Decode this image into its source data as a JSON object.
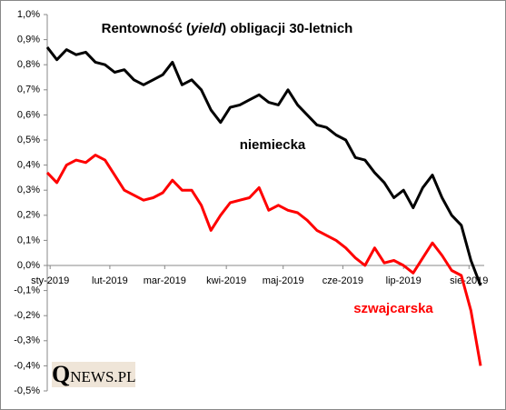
{
  "chart_data": {
    "type": "line",
    "title": [
      "Rentowność (",
      "yield",
      ") obligacji 30-letnich"
    ],
    "xlim": [
      0,
      45
    ],
    "xticks": [
      {
        "value": 0.3,
        "label": "sty-2019"
      },
      {
        "value": 6.5,
        "label": "lut-2019"
      },
      {
        "value": 12.2,
        "label": "mar-2019"
      },
      {
        "value": 18.6,
        "label": "kwi-2019"
      },
      {
        "value": 24.5,
        "label": "maj-2019"
      },
      {
        "value": 30.7,
        "label": "cze-2019"
      },
      {
        "value": 37,
        "label": "lip-2019"
      },
      {
        "value": 43.8,
        "label": "sie-2019"
      }
    ],
    "ylim": [
      -0.5,
      1.0
    ],
    "yticks": [
      {
        "value": 1.0,
        "label": "1,0%"
      },
      {
        "value": 0.9,
        "label": "0,9%"
      },
      {
        "value": 0.8,
        "label": "0,8%"
      },
      {
        "value": 0.7,
        "label": "0,7%"
      },
      {
        "value": 0.6,
        "label": "0,6%"
      },
      {
        "value": 0.5,
        "label": "0,5%"
      },
      {
        "value": 0.4,
        "label": "0,4%"
      },
      {
        "value": 0.3,
        "label": "0,3%"
      },
      {
        "value": 0.2,
        "label": "0,2%"
      },
      {
        "value": 0.1,
        "label": "0,1%"
      },
      {
        "value": 0.0,
        "label": "0,0%"
      },
      {
        "value": -0.1,
        "label": "-0,1%"
      },
      {
        "value": -0.2,
        "label": "-0,2%"
      },
      {
        "value": -0.3,
        "label": "-0,3%"
      },
      {
        "value": -0.4,
        "label": "-0,4%"
      },
      {
        "value": -0.5,
        "label": "-0,5%"
      }
    ],
    "grid": false,
    "series": [
      {
        "name": "niemiecka",
        "color": "#000000",
        "values": [
          0.87,
          0.82,
          0.86,
          0.84,
          0.85,
          0.81,
          0.8,
          0.77,
          0.78,
          0.74,
          0.72,
          0.74,
          0.76,
          0.81,
          0.72,
          0.74,
          0.7,
          0.62,
          0.57,
          0.63,
          0.64,
          0.66,
          0.68,
          0.65,
          0.64,
          0.7,
          0.64,
          0.6,
          0.56,
          0.55,
          0.52,
          0.5,
          0.43,
          0.42,
          0.37,
          0.33,
          0.27,
          0.3,
          0.23,
          0.31,
          0.36,
          0.27,
          0.2,
          0.16,
          0.02,
          -0.08
        ]
      },
      {
        "name": "szwajcarska",
        "color": "#ff0000",
        "values": [
          0.37,
          0.33,
          0.4,
          0.42,
          0.41,
          0.44,
          0.42,
          0.36,
          0.3,
          0.28,
          0.26,
          0.27,
          0.29,
          0.34,
          0.3,
          0.3,
          0.24,
          0.14,
          0.2,
          0.25,
          0.26,
          0.27,
          0.31,
          0.22,
          0.24,
          0.22,
          0.21,
          0.18,
          0.14,
          0.12,
          0.1,
          0.07,
          0.03,
          0.0,
          0.07,
          0.01,
          0.02,
          0.0,
          -0.03,
          0.03,
          0.09,
          0.04,
          -0.02,
          -0.04,
          -0.18,
          -0.4
        ]
      }
    ]
  },
  "logo": "QNEWS.PL"
}
